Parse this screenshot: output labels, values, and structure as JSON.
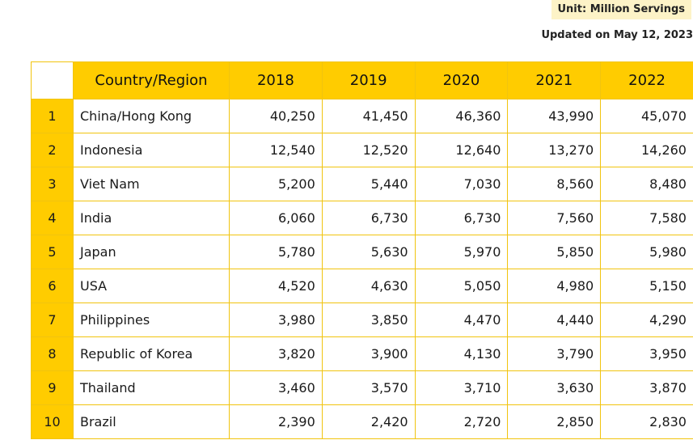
{
  "unit_label": "Unit: Million Servings",
  "updated_label": "Updated on May 12, 2023",
  "chart_data": {
    "type": "table",
    "columns": [
      "",
      "Country/Region",
      "2018",
      "2019",
      "2020",
      "2021",
      "2022"
    ],
    "rows": [
      {
        "rank": "1",
        "country": "China/Hong Kong",
        "values": [
          "40,250",
          "41,450",
          "46,360",
          "43,990",
          "45,070"
        ]
      },
      {
        "rank": "2",
        "country": "Indonesia",
        "values": [
          "12,540",
          "12,520",
          "12,640",
          "13,270",
          "14,260"
        ]
      },
      {
        "rank": "3",
        "country": "Viet Nam",
        "values": [
          "5,200",
          "5,440",
          "7,030",
          "8,560",
          "8,480"
        ]
      },
      {
        "rank": "4",
        "country": "India",
        "values": [
          "6,060",
          "6,730",
          "6,730",
          "7,560",
          "7,580"
        ]
      },
      {
        "rank": "5",
        "country": "Japan",
        "values": [
          "5,780",
          "5,630",
          "5,970",
          "5,850",
          "5,980"
        ]
      },
      {
        "rank": "6",
        "country": "USA",
        "values": [
          "4,520",
          "4,630",
          "5,050",
          "4,980",
          "5,150"
        ]
      },
      {
        "rank": "7",
        "country": "Philippines",
        "values": [
          "3,980",
          "3,850",
          "4,470",
          "4,440",
          "4,290"
        ]
      },
      {
        "rank": "8",
        "country": "Republic of Korea",
        "values": [
          "3,820",
          "3,900",
          "4,130",
          "3,790",
          "3,950"
        ]
      },
      {
        "rank": "9",
        "country": "Thailand",
        "values": [
          "3,460",
          "3,570",
          "3,710",
          "3,630",
          "3,870"
        ]
      },
      {
        "rank": "10",
        "country": "Brazil",
        "values": [
          "2,390",
          "2,420",
          "2,720",
          "2,850",
          "2,830"
        ]
      }
    ]
  },
  "colors": {
    "accent": "#ffcc00",
    "border": "#f1c40f",
    "badge_bg": "#fdf3c7"
  }
}
